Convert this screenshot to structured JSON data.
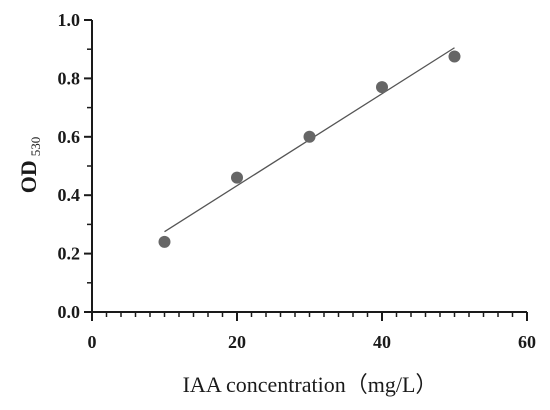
{
  "chart_data": {
    "type": "scatter",
    "title": "",
    "xlabel": "IAA concentration（mg/L）",
    "ylabel": {
      "main": "OD",
      "sub": "530"
    },
    "xlim": [
      0,
      60
    ],
    "ylim": [
      0.0,
      1.0
    ],
    "x_ticks": [
      0,
      20,
      40,
      60
    ],
    "x_tick_labels": [
      "0",
      "20",
      "40",
      "60"
    ],
    "x_minor_step": 2,
    "y_ticks": [
      0.0,
      0.2,
      0.4,
      0.6,
      0.8,
      1.0
    ],
    "y_tick_labels": [
      "0.0",
      "0.2",
      "0.4",
      "0.6",
      "0.8",
      "1.0"
    ],
    "y_minor_step": 0.1,
    "grid": false,
    "series": [
      {
        "x": [
          10,
          20,
          30,
          40,
          50
        ],
        "y": [
          0.24,
          0.46,
          0.6,
          0.77,
          0.875
        ],
        "color": "#666666"
      }
    ],
    "fit_line": {
      "x": [
        10,
        50
      ],
      "y": [
        0.275,
        0.905
      ],
      "color": "#555555"
    }
  }
}
